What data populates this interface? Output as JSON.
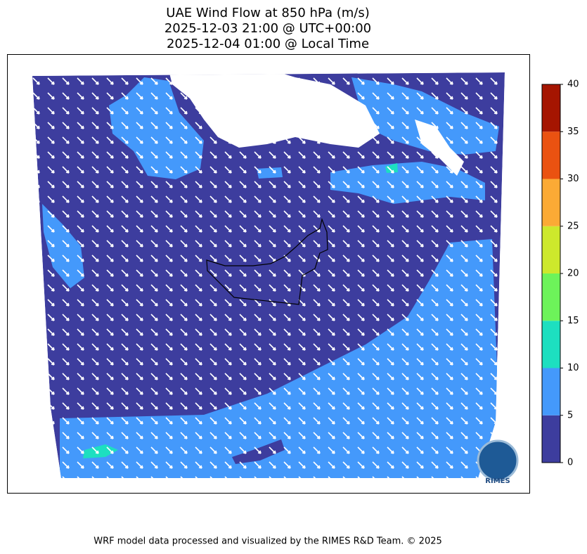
{
  "title": [
    "UAE Wind Flow at 850 hPa (m/s)",
    "2025-12-03 21:00 @ UTC+00:00",
    "2025-12-04 01:00 @ Local Time"
  ],
  "colorbar": {
    "ticks": [
      0,
      5,
      10,
      15,
      20,
      25,
      30,
      35,
      40
    ],
    "colors": [
      "#3d3d9e",
      "#4499fb",
      "#1ddfc0",
      "#6df35a",
      "#cde82c",
      "#fbaa35",
      "#ea5211",
      "#a51501"
    ]
  },
  "logo": "RIMES",
  "footer": "WRF model data processed and visualized by the RIMES R&D Team. © 2025"
}
